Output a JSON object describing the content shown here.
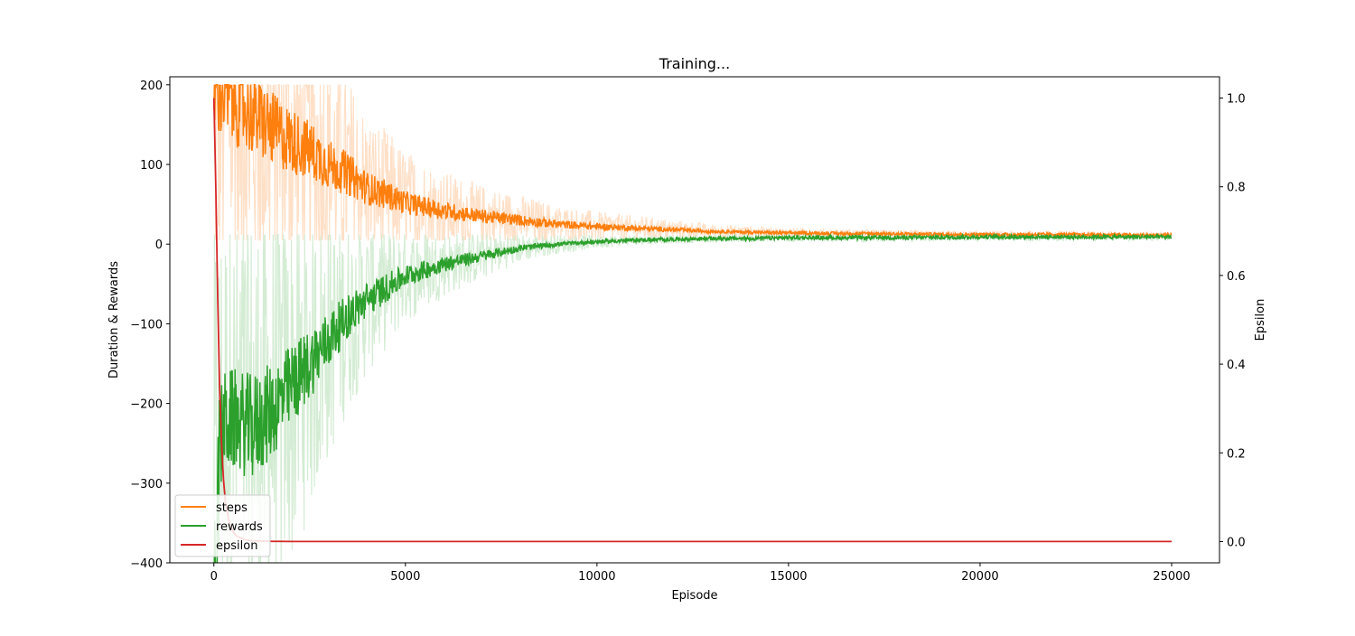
{
  "chart_data": {
    "type": "line",
    "title": "Training...",
    "xlabel": "Episode",
    "ylabel": "Duration & Rewards",
    "y2label": "Epsilon",
    "xlim": [
      -1150,
      26250
    ],
    "ylim": [
      -400,
      210
    ],
    "y2lim": [
      -0.048,
      1.048
    ],
    "x_ticks": [
      0,
      5000,
      10000,
      15000,
      20000,
      25000
    ],
    "y_ticks": [
      200,
      100,
      0,
      -100,
      -200,
      -300,
      -400
    ],
    "y2_ticks": [
      1.0,
      0.8,
      0.6,
      0.4,
      0.2,
      0.0
    ],
    "x_tick_labels": [
      "0",
      "5000",
      "10000",
      "15000",
      "20000",
      "25000"
    ],
    "y_tick_labels": [
      "200",
      "100",
      "0",
      "−100",
      "−200",
      "−300",
      "−400"
    ],
    "y2_tick_labels": [
      "1.0",
      "0.8",
      "0.6",
      "0.4",
      "0.2",
      "0.0"
    ],
    "grid": false,
    "legend_position": "bottom-left",
    "colors": {
      "steps": "#ff7f0e",
      "steps_raw": "#ffe0c8",
      "rewards": "#2ca02c",
      "rewards_raw": "#d4ecd4",
      "epsilon": "#d62728"
    },
    "series": [
      {
        "name": "steps",
        "axis": "left",
        "x": [
          0,
          500,
          1000,
          1500,
          2000,
          2500,
          3000,
          3500,
          4000,
          4500,
          5000,
          6000,
          7000,
          8000,
          9000,
          10000,
          11000,
          12000,
          13000,
          14000,
          15000,
          17500,
          20000,
          22500,
          25000
        ],
        "y": [
          200,
          185,
          165,
          145,
          130,
          118,
          100,
          88,
          70,
          62,
          52,
          42,
          35,
          30,
          25,
          22,
          20,
          18,
          16,
          15,
          14,
          13,
          12,
          12,
          11
        ]
      },
      {
        "name": "rewards",
        "axis": "left",
        "x": [
          0,
          50,
          100,
          150,
          250,
          500,
          1000,
          1500,
          2000,
          2500,
          3000,
          3500,
          4000,
          4500,
          5000,
          6000,
          7000,
          8000,
          9000,
          10000,
          11000,
          12000,
          13000,
          14000,
          15000,
          17500,
          20000,
          22500,
          25000
        ],
        "y": [
          -400,
          -395,
          -330,
          -260,
          -225,
          -220,
          -230,
          -210,
          -180,
          -150,
          -120,
          -90,
          -70,
          -55,
          -40,
          -25,
          -15,
          -5,
          0,
          3,
          5,
          6,
          7,
          7,
          8,
          8,
          9,
          9,
          9
        ]
      },
      {
        "name": "epsilon",
        "axis": "right",
        "x": [
          0,
          50,
          100,
          150,
          200,
          250,
          300,
          400,
          500,
          600,
          800,
          1000,
          1500,
          2000,
          5000,
          10000,
          15000,
          20000,
          25000
        ],
        "y": [
          1.0,
          0.8,
          0.55,
          0.35,
          0.22,
          0.14,
          0.09,
          0.045,
          0.022,
          0.012,
          0.004,
          0.002,
          0.0005,
          0.0,
          0.0,
          0.0,
          0.0,
          0.0,
          0.0
        ]
      }
    ]
  }
}
